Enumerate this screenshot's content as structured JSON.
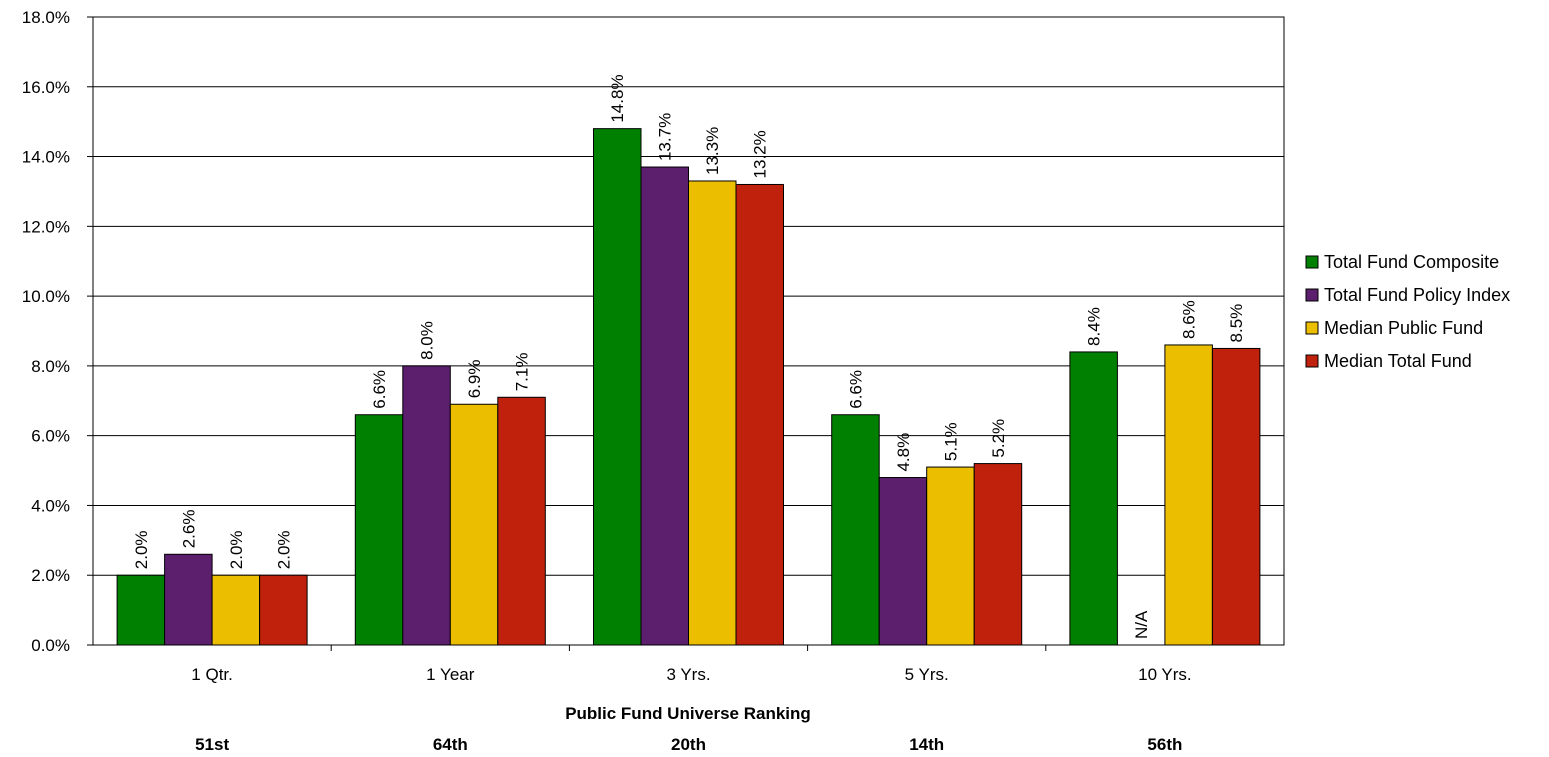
{
  "chart_data": {
    "type": "bar",
    "categories": [
      "1 Qtr.",
      "1 Year",
      "3 Yrs.",
      "5 Yrs.",
      "10 Yrs."
    ],
    "series": [
      {
        "name": "Total Fund Composite",
        "color": "#008000",
        "values": [
          2.0,
          6.6,
          14.8,
          6.6,
          8.4
        ],
        "labels": [
          "2.0%",
          "6.6%",
          "14.8%",
          "6.6%",
          "8.4%"
        ]
      },
      {
        "name": "Total Fund Policy Index",
        "color": "#5C1F6E",
        "values": [
          2.6,
          8.0,
          13.7,
          4.8,
          null
        ],
        "labels": [
          "2.6%",
          "8.0%",
          "13.7%",
          "4.8%",
          "N/A"
        ]
      },
      {
        "name": "Median Public Fund",
        "color": "#EBBE00",
        "values": [
          2.0,
          6.9,
          13.3,
          5.1,
          8.6
        ],
        "labels": [
          "2.0%",
          "6.9%",
          "13.3%",
          "5.1%",
          "8.6%"
        ]
      },
      {
        "name": "Median Total Fund",
        "color": "#C0210D",
        "values": [
          2.0,
          7.1,
          13.2,
          5.2,
          8.5
        ],
        "labels": [
          "2.0%",
          "7.1%",
          "13.2%",
          "5.2%",
          "8.5%"
        ]
      }
    ],
    "ylim": [
      0,
      18
    ],
    "yticks": [
      "0.0%",
      "2.0%",
      "4.0%",
      "6.0%",
      "8.0%",
      "10.0%",
      "12.0%",
      "14.0%",
      "16.0%",
      "18.0%"
    ],
    "grid": true,
    "legend_position": "right",
    "ranking_title": "Public Fund Universe Ranking",
    "rankings": [
      "51st",
      "64th",
      "20th",
      "14th",
      "56th"
    ]
  }
}
